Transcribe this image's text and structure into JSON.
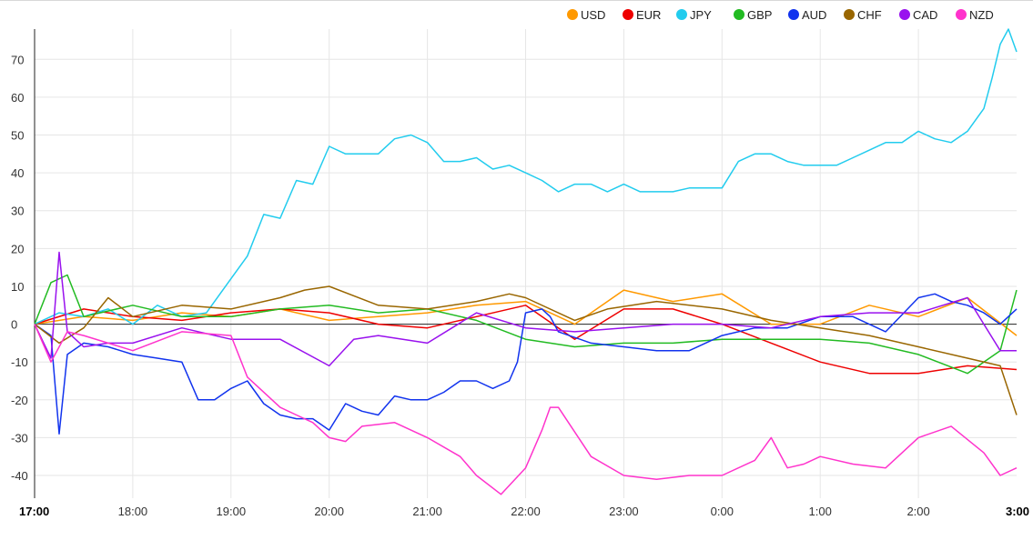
{
  "chart_data": {
    "type": "line",
    "title": "",
    "xlabel": "",
    "ylabel": "",
    "ylim": [
      -46,
      78
    ],
    "y_ticks": [
      70,
      60,
      50,
      40,
      30,
      20,
      10,
      0,
      -10,
      -20,
      -30,
      -40
    ],
    "x_ticks": [
      {
        "label": "17:00",
        "t": 0,
        "bold": true
      },
      {
        "label": "18:00",
        "t": 60
      },
      {
        "label": "19:00",
        "t": 120
      },
      {
        "label": "20:00",
        "t": 180
      },
      {
        "label": "21:00",
        "t": 240
      },
      {
        "label": "22:00",
        "t": 300
      },
      {
        "label": "23:00",
        "t": 360
      },
      {
        "label": "0:00",
        "t": 420
      },
      {
        "label": "1:00",
        "t": 480
      },
      {
        "label": "2:00",
        "t": 540
      },
      {
        "label": "3:00",
        "t": 600,
        "bold": true
      }
    ],
    "xlim": [
      0,
      600
    ],
    "grid": true,
    "legend_position": "top-right",
    "series": [
      {
        "name": "USD",
        "color": "#ff9900",
        "t": [
          0,
          30,
          60,
          90,
          120,
          150,
          180,
          210,
          240,
          270,
          300,
          330,
          360,
          390,
          420,
          450,
          480,
          510,
          540,
          570,
          600
        ],
        "values": [
          0,
          2,
          1,
          3,
          2,
          4,
          1,
          2,
          3,
          5,
          6,
          0,
          9,
          6,
          8,
          0,
          0,
          5,
          2,
          7,
          -3
        ]
      },
      {
        "name": "EUR",
        "color": "#ee0000",
        "t": [
          0,
          30,
          60,
          90,
          120,
          150,
          180,
          210,
          240,
          270,
          300,
          330,
          360,
          390,
          420,
          450,
          480,
          510,
          540,
          570,
          600
        ],
        "values": [
          0,
          4,
          2,
          1,
          3,
          4,
          3,
          0,
          -1,
          2,
          5,
          -4,
          4,
          4,
          0,
          -5,
          -10,
          -13,
          -13,
          -11,
          -12
        ]
      },
      {
        "name": "JPY",
        "color": "#22ccee",
        "t": [
          0,
          15,
          30,
          45,
          60,
          75,
          90,
          105,
          120,
          130,
          140,
          150,
          160,
          170,
          180,
          190,
          200,
          210,
          220,
          230,
          240,
          250,
          260,
          270,
          280,
          290,
          300,
          310,
          320,
          330,
          340,
          350,
          360,
          370,
          380,
          390,
          400,
          410,
          420,
          430,
          440,
          450,
          460,
          470,
          480,
          490,
          500,
          510,
          520,
          530,
          540,
          550,
          560,
          570,
          580,
          585,
          590,
          595,
          600
        ],
        "values": [
          0,
          3,
          2,
          4,
          0,
          5,
          2,
          3,
          12,
          18,
          29,
          28,
          38,
          37,
          47,
          45,
          45,
          45,
          49,
          50,
          48,
          43,
          43,
          44,
          41,
          42,
          40,
          38,
          35,
          37,
          37,
          35,
          37,
          35,
          35,
          35,
          36,
          36,
          36,
          43,
          45,
          45,
          43,
          42,
          42,
          42,
          44,
          46,
          48,
          48,
          51,
          49,
          48,
          51,
          57,
          65,
          74,
          78,
          72
        ]
      },
      {
        "name": "GBP",
        "color": "#22bb22",
        "t": [
          0,
          10,
          20,
          30,
          60,
          90,
          120,
          150,
          180,
          210,
          240,
          270,
          300,
          330,
          360,
          390,
          420,
          450,
          480,
          510,
          540,
          570,
          590,
          600
        ],
        "values": [
          0,
          11,
          13,
          2,
          5,
          2,
          2,
          4,
          5,
          3,
          4,
          1,
          -4,
          -6,
          -5,
          -5,
          -4,
          -4,
          -4,
          -5,
          -8,
          -13,
          -7,
          9
        ]
      },
      {
        "name": "AUD",
        "color": "#1133ee",
        "t": [
          0,
          10,
          15,
          20,
          30,
          45,
          60,
          75,
          90,
          100,
          110,
          120,
          130,
          140,
          150,
          160,
          170,
          180,
          190,
          200,
          210,
          220,
          230,
          240,
          250,
          260,
          270,
          280,
          290,
          295,
          300,
          310,
          315,
          320,
          340,
          360,
          380,
          400,
          420,
          440,
          460,
          480,
          500,
          520,
          540,
          550,
          560,
          570,
          580,
          590,
          600
        ],
        "values": [
          0,
          -3,
          -29,
          -8,
          -5,
          -6,
          -8,
          -9,
          -10,
          -20,
          -20,
          -17,
          -15,
          -21,
          -24,
          -25,
          -25,
          -28,
          -21,
          -23,
          -24,
          -19,
          -20,
          -20,
          -18,
          -15,
          -15,
          -17,
          -15,
          -10,
          3,
          4,
          2,
          -2,
          -5,
          -6,
          -7,
          -7,
          -3,
          -1,
          -1,
          2,
          2,
          -2,
          7,
          8,
          6,
          5,
          3,
          0,
          4
        ]
      },
      {
        "name": "CHF",
        "color": "#996600",
        "t": [
          0,
          15,
          30,
          45,
          60,
          90,
          120,
          150,
          165,
          180,
          210,
          240,
          270,
          290,
          300,
          330,
          350,
          380,
          420,
          450,
          480,
          510,
          540,
          570,
          590,
          600
        ],
        "values": [
          0,
          -5,
          -1,
          7,
          2,
          5,
          4,
          7,
          9,
          10,
          5,
          4,
          6,
          8,
          7,
          1,
          4,
          6,
          4,
          1,
          -1,
          -3,
          -6,
          -9,
          -11,
          -24
        ]
      },
      {
        "name": "CAD",
        "color": "#9911ee",
        "t": [
          0,
          10,
          15,
          20,
          30,
          45,
          60,
          90,
          120,
          150,
          180,
          195,
          210,
          240,
          270,
          300,
          330,
          360,
          390,
          420,
          450,
          480,
          510,
          540,
          570,
          590,
          600
        ],
        "values": [
          0,
          -9,
          19,
          -2,
          -6,
          -5,
          -5,
          -1,
          -4,
          -4,
          -11,
          -4,
          -3,
          -5,
          3,
          -1,
          -2,
          -1,
          0,
          0,
          -1,
          2,
          3,
          3,
          7,
          -7,
          -7
        ]
      },
      {
        "name": "NZD",
        "color": "#ff33cc",
        "t": [
          0,
          10,
          20,
          30,
          60,
          90,
          120,
          130,
          150,
          160,
          170,
          180,
          190,
          200,
          220,
          240,
          260,
          270,
          285,
          300,
          310,
          315,
          320,
          340,
          360,
          380,
          400,
          420,
          440,
          450,
          460,
          470,
          480,
          500,
          520,
          540,
          560,
          580,
          590,
          600
        ],
        "values": [
          0,
          -10,
          -2,
          -3,
          -7,
          -2,
          -3,
          -14,
          -22,
          -24,
          -26,
          -30,
          -31,
          -27,
          -26,
          -30,
          -35,
          -40,
          -45,
          -38,
          -28,
          -22,
          -22,
          -35,
          -40,
          -41,
          -40,
          -40,
          -36,
          -30,
          -38,
          -37,
          -35,
          -37,
          -38,
          -30,
          -27,
          -34,
          -40,
          -38
        ]
      }
    ]
  }
}
